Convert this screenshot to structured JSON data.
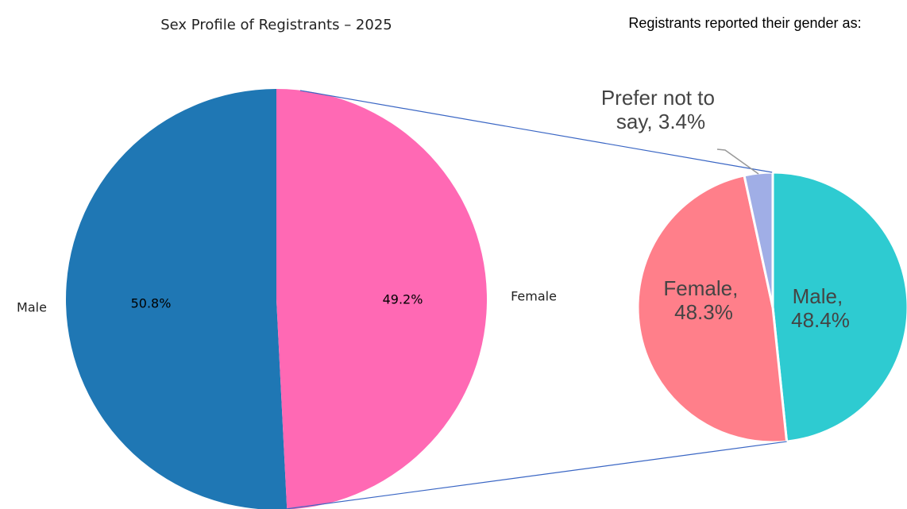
{
  "chart_data": [
    {
      "type": "pie",
      "title": "Sex Profile of Registrants – 2025",
      "categories": [
        "Male",
        "Female"
      ],
      "values": [
        50.8,
        49.2
      ],
      "value_labels": [
        "50.8%",
        "49.2%"
      ],
      "colors": [
        "#1f77b4",
        "#ff69b4"
      ]
    },
    {
      "type": "pie",
      "title": "Registrants reported their gender as:",
      "values": [
        48.4,
        48.3,
        3.4
      ],
      "value_labels": [
        "Male, 48.4%",
        "Female, 48.3%",
        "Prefer not to say, 3.4%"
      ],
      "colors": [
        "#2ecbd1",
        "#ff7f8a",
        "#a0aee6"
      ]
    }
  ]
}
